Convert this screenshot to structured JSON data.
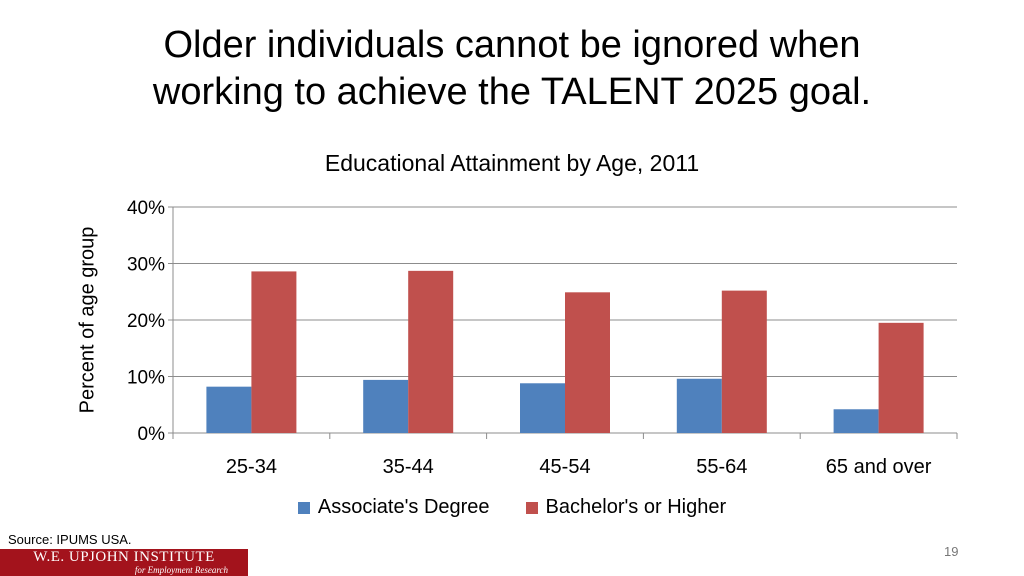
{
  "slide": {
    "title_line1": "Older individuals cannot be ignored when",
    "title_line2": "working to achieve the TALENT 2025 goal.",
    "source": "Source: IPUMS USA.",
    "page_number": "19",
    "logo": {
      "main": "W.E. UPJOHN INSTITUTE",
      "sub": "for Employment Research"
    }
  },
  "chart_data": {
    "type": "bar",
    "title": "Educational Attainment by Age, 2011",
    "xlabel": "",
    "ylabel": "Percent of age group",
    "categories": [
      "25-34",
      "35-44",
      "45-54",
      "55-64",
      "65 and over"
    ],
    "series": [
      {
        "name": "Associate's Degree",
        "color": "#4f81bd",
        "values": [
          8.2,
          9.4,
          8.8,
          9.6,
          4.2
        ]
      },
      {
        "name": "Bachelor's or Higher",
        "color": "#c0504d",
        "values": [
          28.6,
          28.7,
          24.9,
          25.2,
          19.5
        ]
      }
    ],
    "ylim": [
      0,
      40
    ],
    "yticks": [
      "0%",
      "10%",
      "20%",
      "30%",
      "40%"
    ],
    "ytick_values": [
      0,
      10,
      20,
      30,
      40
    ],
    "grid": true,
    "legend": "bottom"
  }
}
